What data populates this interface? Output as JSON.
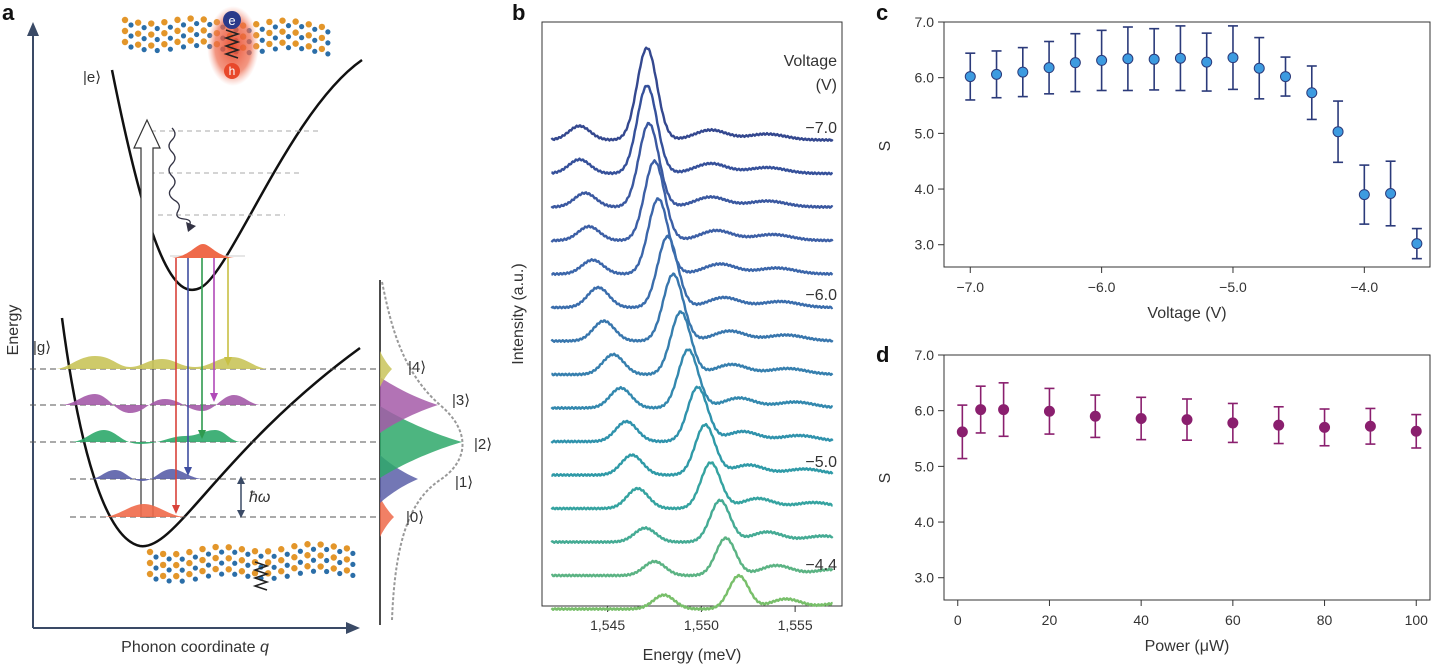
{
  "panels": {
    "a": {
      "label": "a",
      "ylabel": "Energy",
      "xlabel_text": "Phonon coordinate ",
      "xlabel_var": "q",
      "excited_state": "|e⟩",
      "ground_state": "|g⟩",
      "phonon_energy": "ħω",
      "exciton_e": "e",
      "exciton_h": "h",
      "levels": [
        {
          "label": "|0⟩",
          "color": "#ef6a4a"
        },
        {
          "label": "|1⟩",
          "color": "#5a5fa8"
        },
        {
          "label": "|2⟩",
          "color": "#2ea86a"
        },
        {
          "label": "|3⟩",
          "color": "#a45aa8"
        },
        {
          "label": "|4⟩",
          "color": "#c9c45a"
        }
      ],
      "colors": {
        "curve": "#111111",
        "axis": "#3a4a66",
        "orange_atom": "#e3962a",
        "blue_atom": "#2b6ea8",
        "exciton": "#e8482a"
      }
    },
    "b": {
      "label": "b"
    },
    "c": {
      "label": "c"
    },
    "d": {
      "label": "d"
    }
  },
  "chart_data": [
    {
      "panel": "b",
      "type": "line",
      "xlabel": "Energy (meV)",
      "ylabel": "Intensity (a.u.)",
      "xlim": [
        1541.5,
        1557.5
      ],
      "xticks": [
        1545,
        1550,
        1555
      ],
      "xtick_labels": [
        "1,545",
        "1,550",
        "1,555"
      ],
      "legend_title": "Voltage\n(V)",
      "legend_title_lines": [
        "Voltage",
        "(V)"
      ],
      "annotations": [
        "−7.0",
        "−6.0",
        "−5.0",
        "−4.4"
      ],
      "series_count": 15,
      "series": [
        {
          "main_peak_meV": 1547.1,
          "side_peak_meV": 1543.5,
          "shoulder_meV": 1550.5
        },
        {
          "main_peak_meV": 1547.1,
          "side_peak_meV": 1543.5,
          "shoulder_meV": 1550.5
        },
        {
          "main_peak_meV": 1547.2,
          "side_peak_meV": 1543.8,
          "shoulder_meV": 1550.5
        },
        {
          "main_peak_meV": 1547.5,
          "side_peak_meV": 1544.0,
          "shoulder_meV": 1550.8
        },
        {
          "main_peak_meV": 1547.7,
          "side_peak_meV": 1544.2,
          "shoulder_meV": 1551.0
        },
        {
          "main_peak_meV": 1548.2,
          "side_peak_meV": 1544.5,
          "shoulder_meV": 1551.2
        },
        {
          "main_peak_meV": 1548.5,
          "side_peak_meV": 1544.8,
          "shoulder_meV": 1551.5
        },
        {
          "main_peak_meV": 1548.9,
          "side_peak_meV": 1545.3,
          "shoulder_meV": 1551.6
        },
        {
          "main_peak_meV": 1549.3,
          "side_peak_meV": 1545.7,
          "shoulder_meV": 1552.0
        },
        {
          "main_peak_meV": 1549.8,
          "side_peak_meV": 1546.0,
          "shoulder_meV": 1552.2
        },
        {
          "main_peak_meV": 1550.2,
          "side_peak_meV": 1546.3,
          "shoulder_meV": 1552.5
        },
        {
          "main_peak_meV": 1550.5,
          "side_peak_meV": 1546.6,
          "shoulder_meV": 1553.0
        },
        {
          "main_peak_meV": 1551.0,
          "side_peak_meV": 1547.0,
          "shoulder_meV": 1553.5
        },
        {
          "main_peak_meV": 1551.3,
          "side_peak_meV": 1547.5,
          "shoulder_meV": 1554.0
        },
        {
          "main_peak_meV": 1552.0,
          "side_peak_meV": 1548.0,
          "shoulder_meV": 1554.5
        }
      ],
      "colors": [
        "#34488f",
        "#35509a",
        "#3a58a0",
        "#3c5fa6",
        "#3b66aa",
        "#3a6dac",
        "#3876ad",
        "#367fae",
        "#3388ae",
        "#2f92ac",
        "#2f9aa7",
        "#35a3a0",
        "#45ab94",
        "#5bb383",
        "#78bf6a"
      ]
    },
    {
      "panel": "c",
      "type": "scatter",
      "xlabel": "Voltage (V)",
      "ylabel": "S",
      "xlim": [
        -7.2,
        -3.5
      ],
      "ylim": [
        2.6,
        7.0
      ],
      "xticks": [
        -7.0,
        -6.0,
        -5.0,
        -4.0
      ],
      "xtick_labels": [
        "−7.0",
        "−6.0",
        "−5.0",
        "−4.0"
      ],
      "yticks": [
        3.0,
        4.0,
        5.0,
        6.0,
        7.0
      ],
      "ytick_labels": [
        "3.0",
        "4.0",
        "5.0",
        "6.0",
        "7.0"
      ],
      "x": [
        -7.0,
        -6.8,
        -6.6,
        -6.4,
        -6.2,
        -6.0,
        -5.8,
        -5.6,
        -5.4,
        -5.2,
        -5.0,
        -4.8,
        -4.6,
        -4.4,
        -4.2,
        -4.0,
        -3.8,
        -3.6
      ],
      "y": [
        6.02,
        6.06,
        6.1,
        6.18,
        6.27,
        6.31,
        6.34,
        6.33,
        6.35,
        6.28,
        6.36,
        6.17,
        6.02,
        5.73,
        5.03,
        3.9,
        3.92,
        3.02
      ],
      "err": [
        0.42,
        0.42,
        0.44,
        0.47,
        0.52,
        0.54,
        0.57,
        0.55,
        0.58,
        0.52,
        0.57,
        0.55,
        0.35,
        0.48,
        0.55,
        0.53,
        0.58,
        0.27
      ],
      "marker_color": "#3d9be0",
      "error_color": "#2b3a7a"
    },
    {
      "panel": "d",
      "type": "scatter",
      "xlabel": "Power (μW)",
      "ylabel": "S",
      "xlim": [
        -3,
        103
      ],
      "ylim": [
        2.6,
        7.0
      ],
      "xticks": [
        0,
        20,
        40,
        60,
        80,
        100
      ],
      "xtick_labels": [
        "0",
        "20",
        "40",
        "60",
        "80",
        "100"
      ],
      "yticks": [
        3.0,
        4.0,
        5.0,
        6.0,
        7.0
      ],
      "ytick_labels": [
        "3.0",
        "4.0",
        "5.0",
        "6.0",
        "7.0"
      ],
      "x": [
        1,
        5,
        10,
        20,
        30,
        40,
        50,
        60,
        70,
        80,
        90,
        100
      ],
      "y": [
        5.62,
        6.02,
        6.02,
        5.99,
        5.9,
        5.86,
        5.84,
        5.78,
        5.74,
        5.7,
        5.72,
        5.63
      ],
      "err": [
        0.48,
        0.42,
        0.48,
        0.41,
        0.38,
        0.38,
        0.37,
        0.35,
        0.33,
        0.33,
        0.32,
        0.3
      ],
      "marker_color": "#8a1f6e",
      "error_color": "#8a1f6e"
    }
  ]
}
